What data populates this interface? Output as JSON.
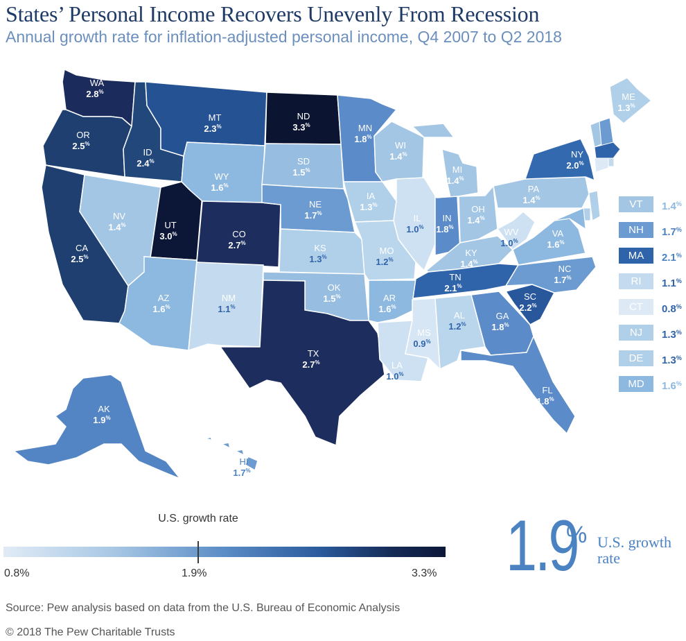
{
  "header": {
    "title": "States’ Personal Income Recovers Unevenly From Recession",
    "subtitle": "Annual growth rate for inflation-adjusted personal income, Q4 2007 to Q2 2018"
  },
  "pct_symbol": "%",
  "states": [
    {
      "abbr": "WA",
      "value": "2.8",
      "color": "#1b2b5c"
    },
    {
      "abbr": "OR",
      "value": "2.5",
      "color": "#1f3f70"
    },
    {
      "abbr": "CA",
      "value": "2.5",
      "color": "#1f3f70"
    },
    {
      "abbr": "ID",
      "value": "2.4",
      "color": "#22477a"
    },
    {
      "abbr": "NV",
      "value": "1.4",
      "color": "#a3c6e4"
    },
    {
      "abbr": "UT",
      "value": "3.0",
      "color": "#0c1737"
    },
    {
      "abbr": "AZ",
      "value": "1.6",
      "color": "#8db8df"
    },
    {
      "abbr": "MT",
      "value": "2.3",
      "color": "#245292"
    },
    {
      "abbr": "WY",
      "value": "1.6",
      "color": "#8db8df"
    },
    {
      "abbr": "CO",
      "value": "2.7",
      "color": "#1c2d5e"
    },
    {
      "abbr": "NM",
      "value": "1.1",
      "color": "#c4dbef"
    },
    {
      "abbr": "ND",
      "value": "3.3",
      "color": "#0b1430"
    },
    {
      "abbr": "SD",
      "value": "1.5",
      "color": "#97bde0"
    },
    {
      "abbr": "NE",
      "value": "1.7",
      "color": "#6b9bd0"
    },
    {
      "abbr": "KS",
      "value": "1.3",
      "color": "#b0cfe9"
    },
    {
      "abbr": "OK",
      "value": "1.5",
      "color": "#97bde0"
    },
    {
      "abbr": "TX",
      "value": "2.7",
      "color": "#1c2d5e"
    },
    {
      "abbr": "MN",
      "value": "1.8",
      "color": "#5b8bc8"
    },
    {
      "abbr": "IA",
      "value": "1.3",
      "color": "#b0cfe9"
    },
    {
      "abbr": "MO",
      "value": "1.2",
      "color": "#bad6ed"
    },
    {
      "abbr": "AR",
      "value": "1.6",
      "color": "#8db8df"
    },
    {
      "abbr": "LA",
      "value": "1.0",
      "color": "#cde1f2"
    },
    {
      "abbr": "WI",
      "value": "1.4",
      "color": "#a3c6e4"
    },
    {
      "abbr": "IL",
      "value": "1.0",
      "color": "#cde1f2"
    },
    {
      "abbr": "MI",
      "value": "1.4",
      "color": "#a3c6e4"
    },
    {
      "abbr": "IN",
      "value": "1.8",
      "color": "#5b8bc8"
    },
    {
      "abbr": "OH",
      "value": "1.4",
      "color": "#a3c6e4"
    },
    {
      "abbr": "KY",
      "value": "1.4",
      "color": "#a3c6e4"
    },
    {
      "abbr": "TN",
      "value": "2.1",
      "color": "#2f63aa"
    },
    {
      "abbr": "MS",
      "value": "0.9",
      "color": "#d6e6f4"
    },
    {
      "abbr": "AL",
      "value": "1.2",
      "color": "#bad6ed"
    },
    {
      "abbr": "GA",
      "value": "1.8",
      "color": "#5b8bc8"
    },
    {
      "abbr": "FL",
      "value": "1.8",
      "color": "#5b8bc8"
    },
    {
      "abbr": "SC",
      "value": "2.2",
      "color": "#28579c"
    },
    {
      "abbr": "NC",
      "value": "1.7",
      "color": "#6b9bd0"
    },
    {
      "abbr": "VA",
      "value": "1.6",
      "color": "#8db8df"
    },
    {
      "abbr": "WV",
      "value": "1.0",
      "color": "#cde1f2"
    },
    {
      "abbr": "PA",
      "value": "1.4",
      "color": "#a3c6e4"
    },
    {
      "abbr": "NY",
      "value": "2.0",
      "color": "#336aaf"
    },
    {
      "abbr": "ME",
      "value": "1.3",
      "color": "#b0cfe9"
    },
    {
      "abbr": "AK",
      "value": "1.9",
      "color": "#5385c4"
    },
    {
      "abbr": "HI",
      "value": "1.7",
      "color": "#6b9bd0"
    }
  ],
  "small_states": [
    {
      "abbr": "VT",
      "value": "1.4",
      "color": "#a3c6e4"
    },
    {
      "abbr": "NH",
      "value": "1.7",
      "color": "#6b9bd0"
    },
    {
      "abbr": "MA",
      "value": "2.1",
      "color": "#2f63aa"
    },
    {
      "abbr": "RI",
      "value": "1.1",
      "color": "#c4dbef"
    },
    {
      "abbr": "CT",
      "value": "0.8",
      "color": "#dde9f5"
    },
    {
      "abbr": "NJ",
      "value": "1.3",
      "color": "#b0cfe9"
    },
    {
      "abbr": "DE",
      "value": "1.3",
      "color": "#b0cfe9"
    },
    {
      "abbr": "MD",
      "value": "1.6",
      "color": "#8db8df"
    }
  ],
  "legend": {
    "marker_label": "U.S. growth rate",
    "min_label": "0.8%",
    "mid_label": "1.9%",
    "max_label": "3.3%",
    "min": 0.8,
    "max": 3.3,
    "marker_value": 1.9
  },
  "us_rate": {
    "value": "1.9",
    "pct": "%",
    "caption": "U.S. growth rate"
  },
  "footer": {
    "source": "Source: Pew analysis based on data from the U.S. Bureau of Economic Analysis",
    "credit": "© 2018 The Pew Charitable Trusts"
  }
}
